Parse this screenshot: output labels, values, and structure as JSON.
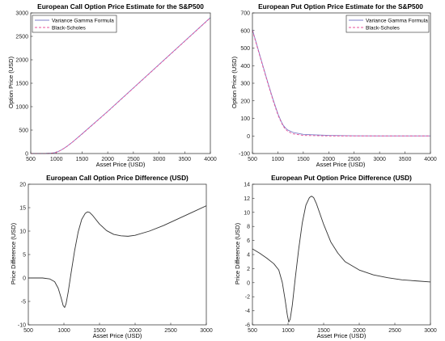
{
  "chart_data": [
    {
      "type": "line",
      "title": "European Call Option Price Estimate for the S&P500",
      "xlabel": "Asset Price (USD)",
      "ylabel": "Option Price (USD)",
      "xlim": [
        500,
        4000
      ],
      "ylim": [
        0,
        3000
      ],
      "xticks": [
        500,
        1000,
        1500,
        2000,
        2500,
        3000,
        3500,
        4000
      ],
      "yticks": [
        0,
        500,
        1000,
        1500,
        2000,
        2500,
        3000
      ],
      "legend": "top-left",
      "series": [
        {
          "name": "Variance Gamma Formula",
          "color": "#7e7ec8",
          "dash": "solid",
          "x": [
            500,
            800,
            900,
            950,
            1000,
            1050,
            1100,
            1150,
            1200,
            1300,
            1500,
            2000,
            2500,
            3000,
            3500,
            4000
          ],
          "y": [
            0,
            2,
            8,
            15,
            28,
            50,
            80,
            113,
            150,
            232,
            420,
            900,
            1400,
            1900,
            2400,
            2900
          ]
        },
        {
          "name": "Black-Scholes",
          "color": "#e8509a",
          "dash": "dashed",
          "x": [
            500,
            800,
            900,
            950,
            1000,
            1050,
            1100,
            1150,
            1200,
            1300,
            1500,
            2000,
            2500,
            3000,
            3500,
            4000
          ],
          "y": [
            0,
            1,
            5,
            12,
            25,
            50,
            78,
            112,
            147,
            232,
            415,
            895,
            1395,
            1895,
            2395,
            2895
          ]
        }
      ]
    },
    {
      "type": "line",
      "title": "European Put Option Price Estimate for the S&P500",
      "xlabel": "Asset Price (USD)",
      "ylabel": "Option Price (USD)",
      "xlim": [
        500,
        4000
      ],
      "ylim": [
        -100,
        700
      ],
      "xticks": [
        500,
        1000,
        1500,
        2000,
        2500,
        3000,
        3500,
        4000
      ],
      "yticks": [
        -100,
        0,
        100,
        200,
        300,
        400,
        500,
        600,
        700
      ],
      "legend": "top-right",
      "series": [
        {
          "name": "Variance Gamma Formula",
          "color": "#7e7ec8",
          "dash": "solid",
          "x": [
            500,
            600,
            700,
            800,
            900,
            1000,
            1050,
            1100,
            1150,
            1200,
            1300,
            1500,
            2000,
            2500,
            3000,
            3500,
            4000
          ],
          "y": [
            605,
            505,
            405,
            307,
            213,
            127,
            93,
            63,
            45,
            33,
            20,
            9,
            3,
            1,
            0.5,
            0.3,
            0.2
          ]
        },
        {
          "name": "Black-Scholes",
          "color": "#e8509a",
          "dash": "dashed",
          "x": [
            500,
            600,
            700,
            800,
            900,
            1000,
            1050,
            1100,
            1150,
            1200,
            1300,
            1500,
            2000,
            2500,
            3000,
            3500,
            4000
          ],
          "y": [
            600,
            500,
            400,
            302,
            207,
            120,
            88,
            58,
            38,
            25,
            12,
            3,
            0,
            0,
            0,
            0,
            0
          ]
        }
      ]
    },
    {
      "type": "line",
      "title": "European Call Option Price Difference (USD)",
      "xlabel": "Asset Price (USD)",
      "ylabel": "Price Difference (USD)",
      "xlim": [
        500,
        3000
      ],
      "ylim": [
        -10,
        20
      ],
      "xticks": [
        500,
        1000,
        1500,
        2000,
        2500,
        3000
      ],
      "yticks": [
        -10,
        -5,
        0,
        5,
        10,
        15,
        20
      ],
      "series": [
        {
          "color": "#333333",
          "x": [
            500,
            700,
            800,
            870,
            920,
            960,
            990,
            1010,
            1030,
            1060,
            1100,
            1150,
            1200,
            1250,
            1300,
            1330,
            1360,
            1400,
            1500,
            1600,
            1700,
            1800,
            1900,
            2000,
            2200,
            2400,
            2600,
            2800,
            3000
          ],
          "y": [
            0,
            0,
            -0.2,
            -0.8,
            -2.2,
            -4.2,
            -5.9,
            -6.3,
            -5.5,
            -3,
            1,
            5.8,
            9.8,
            12.5,
            13.8,
            14.1,
            14,
            13.4,
            11.5,
            10.1,
            9.3,
            9.0,
            8.9,
            9.1,
            10,
            11.2,
            12.6,
            14,
            15.4
          ]
        }
      ]
    },
    {
      "type": "line",
      "title": "European Put Option Price Difference (USD)",
      "xlabel": "Asset Price (USD)",
      "ylabel": "Price Difference (USD)",
      "xlim": [
        500,
        3000
      ],
      "ylim": [
        -6,
        14
      ],
      "xticks": [
        500,
        1000,
        1500,
        2000,
        2500,
        3000
      ],
      "yticks": [
        -6,
        -4,
        -2,
        0,
        2,
        4,
        6,
        8,
        10,
        12,
        14
      ],
      "series": [
        {
          "color": "#333333",
          "x": [
            500,
            600,
            700,
            800,
            870,
            920,
            960,
            990,
            1010,
            1030,
            1060,
            1100,
            1150,
            1200,
            1250,
            1300,
            1330,
            1360,
            1400,
            1500,
            1600,
            1700,
            1800,
            2000,
            2200,
            2400,
            2600,
            2800,
            3000
          ],
          "y": [
            4.8,
            4.2,
            3.5,
            2.7,
            1.8,
            0,
            -2.5,
            -4.6,
            -5.6,
            -5.2,
            -3.2,
            0.5,
            4.8,
            8.5,
            11.0,
            12.1,
            12.3,
            12.1,
            11.2,
            8.3,
            5.8,
            4.2,
            3.0,
            1.8,
            1.1,
            0.7,
            0.4,
            0.25,
            0.1
          ]
        }
      ]
    }
  ]
}
